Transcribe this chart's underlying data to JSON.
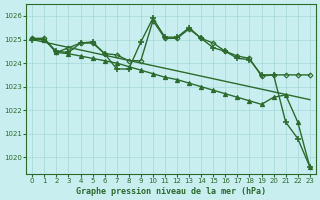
{
  "title": "Graphe pression niveau de la mer (hPa)",
  "bg_color": "#c8eef0",
  "grid_color": "#a8d8d8",
  "line_color": "#2d6a2d",
  "ylim": [
    1019.3,
    1026.5
  ],
  "xlim": [
    -0.5,
    23.5
  ],
  "yticks": [
    1020,
    1021,
    1022,
    1023,
    1024,
    1025,
    1026
  ],
  "xticks": [
    0,
    1,
    2,
    3,
    4,
    5,
    6,
    7,
    8,
    9,
    10,
    11,
    12,
    13,
    14,
    15,
    16,
    17,
    18,
    19,
    20,
    21,
    22,
    23
  ],
  "series": [
    {
      "x": [
        0,
        1,
        2,
        3,
        4,
        5,
        6,
        7,
        8,
        9,
        10,
        11,
        12,
        13,
        14,
        15,
        16,
        17,
        18,
        19,
        20,
        21,
        22,
        23
      ],
      "y": [
        1025.0,
        1025.0,
        1024.5,
        1024.45,
        1024.85,
        1024.9,
        1024.4,
        1023.75,
        1023.75,
        1024.9,
        1025.9,
        1025.1,
        1025.1,
        1025.5,
        1025.05,
        1024.65,
        1024.5,
        1024.2,
        1024.15,
        1023.5,
        1023.5,
        1021.5,
        1020.8,
        1019.6
      ],
      "marker": "+",
      "markersize": 4,
      "markeredgewidth": 1.2,
      "lw": 1.0
    },
    {
      "x": [
        0,
        1,
        2,
        3,
        4,
        5,
        6,
        7,
        8,
        9,
        10,
        11,
        12,
        13,
        14,
        15,
        16,
        17,
        18,
        19,
        20,
        21,
        22,
        23
      ],
      "y": [
        1025.05,
        1025.05,
        1024.45,
        1024.65,
        1024.85,
        1024.85,
        1024.4,
        1024.35,
        1024.1,
        1024.1,
        1025.8,
        1025.05,
        1025.05,
        1025.45,
        1025.05,
        1024.85,
        1024.5,
        1024.3,
        1024.2,
        1023.45,
        1023.5,
        1023.5,
        1023.5,
        1023.5
      ],
      "marker": "D",
      "markersize": 2.5,
      "markeredgewidth": 0.8,
      "lw": 1.0
    },
    {
      "x": [
        0,
        23
      ],
      "y": [
        1025.0,
        1022.45
      ],
      "marker": null,
      "markersize": 0,
      "markeredgewidth": 0,
      "lw": 1.0
    },
    {
      "x": [
        0,
        1,
        2,
        3,
        4,
        5,
        6,
        7,
        8,
        9,
        10,
        11,
        12,
        13,
        14,
        15,
        16,
        17,
        18,
        19,
        20,
        21,
        22,
        23
      ],
      "y": [
        1025.05,
        1025.0,
        1024.45,
        1024.4,
        1024.3,
        1024.2,
        1024.1,
        1024.0,
        1023.85,
        1023.7,
        1023.55,
        1023.4,
        1023.3,
        1023.15,
        1023.0,
        1022.85,
        1022.7,
        1022.55,
        1022.4,
        1022.25,
        1022.55,
        1022.65,
        1021.5,
        1019.6
      ],
      "marker": "^",
      "markersize": 3,
      "markeredgewidth": 0.8,
      "lw": 1.0
    }
  ]
}
